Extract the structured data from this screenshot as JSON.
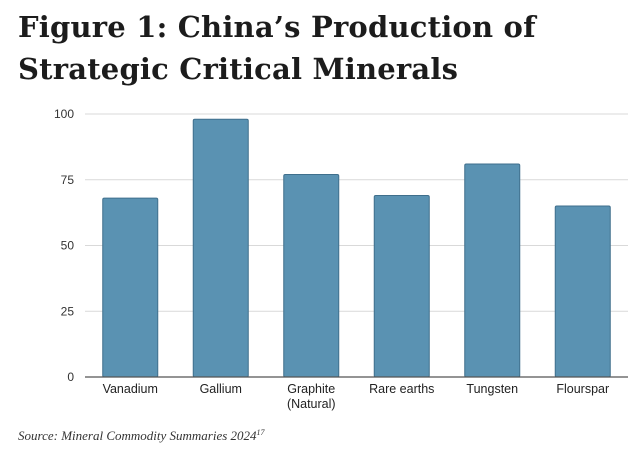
{
  "title": {
    "line1": "Figure 1: China’s Production of",
    "line2": "Strategic Critical Minerals"
  },
  "source": {
    "text": "Source: Mineral Commodity Summaries 2024",
    "footnote": "17"
  },
  "chart_data": {
    "type": "bar",
    "categories": [
      "Vanadium",
      "Gallium",
      "Graphite (Natural)",
      "Rare earths",
      "Tungsten",
      "Flourspar"
    ],
    "category_label_lines": [
      [
        "Vanadium"
      ],
      [
        "Gallium"
      ],
      [
        "Graphite",
        "(Natural)"
      ],
      [
        "Rare earths"
      ],
      [
        "Tungsten"
      ],
      [
        "Flourspar"
      ]
    ],
    "values": [
      68,
      98,
      77,
      69,
      81,
      65
    ],
    "ylim": [
      0,
      100
    ],
    "yticks": [
      0,
      25,
      50,
      75,
      100
    ],
    "xlabel": "",
    "ylabel": "",
    "grid": true,
    "bar_color": "#5a92b2",
    "bar_edge_color": "#3f6f8c",
    "grid_color": "#d9d9d9",
    "axis_color": "#555555"
  }
}
